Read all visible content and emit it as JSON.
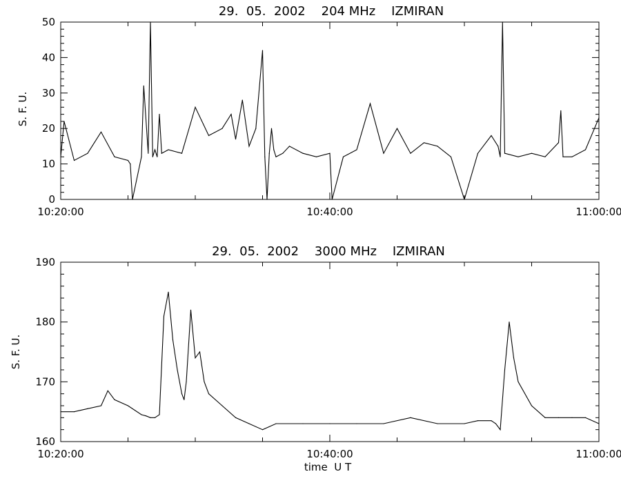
{
  "chart_data": [
    {
      "type": "line",
      "title": "29.  05.  2002    204 MHz    IZMIRAN",
      "ylabel": "S. F. U.",
      "xlabel": "",
      "xlim": [
        "10:20:00",
        "11:00:00"
      ],
      "x_ticks": [
        "10:20:00",
        "10:40:00",
        "11:00:00"
      ],
      "ylim": [
        0,
        50
      ],
      "y_ticks": [
        "0",
        "10",
        "20",
        "30",
        "40",
        "50"
      ],
      "grid": false,
      "series": [
        {
          "x": [
            "10:20:00",
            "10:20:15",
            "10:21:00",
            "10:22:00",
            "10:23:00",
            "10:24:00",
            "10:25:00",
            "10:25:10",
            "10:25:20",
            "10:26:00",
            "10:26:10",
            "10:26:30",
            "10:26:40",
            "10:26:50",
            "10:27:00",
            "10:27:10",
            "10:27:20",
            "10:27:30",
            "10:28:00",
            "10:29:00",
            "10:30:00",
            "10:31:00",
            "10:32:00",
            "10:32:40",
            "10:33:00",
            "10:33:30",
            "10:34:00",
            "10:34:30",
            "10:35:00",
            "10:35:10",
            "10:35:20",
            "10:35:30",
            "10:35:40",
            "10:35:50",
            "10:36:00",
            "10:36:30",
            "10:37:00",
            "10:38:00",
            "10:39:00",
            "10:40:00",
            "10:40:10",
            "10:41:00",
            "10:42:00",
            "10:43:00",
            "10:44:00",
            "10:45:00",
            "10:46:00",
            "10:47:00",
            "10:48:00",
            "10:49:00",
            "10:50:00",
            "10:51:00",
            "10:52:00",
            "10:52:30",
            "10:52:40",
            "10:52:50",
            "10:53:00",
            "10:54:00",
            "10:55:00",
            "10:56:00",
            "10:57:00",
            "10:57:10",
            "10:57:20",
            "10:58:00",
            "10:59:00",
            "11:00:00"
          ],
          "values": [
            12,
            22,
            11,
            13,
            19,
            12,
            11,
            10,
            0,
            12,
            32,
            13,
            55,
            12,
            14,
            12,
            24,
            13,
            14,
            13,
            26,
            18,
            20,
            24,
            17,
            28,
            15,
            20,
            42,
            12,
            0,
            13,
            20,
            14,
            12,
            13,
            15,
            13,
            12,
            13,
            0,
            12,
            14,
            27,
            13,
            20,
            13,
            16,
            15,
            12,
            0,
            13,
            18,
            15,
            12,
            55,
            13,
            12,
            13,
            12,
            16,
            25,
            12,
            12,
            14,
            23
          ]
        }
      ]
    },
    {
      "type": "line",
      "title": "29.  05.  2002    3000 MHz    IZMIRAN",
      "ylabel": "S. F. U.",
      "xlabel": "time  U T",
      "xlim": [
        "10:20:00",
        "11:00:00"
      ],
      "x_ticks": [
        "10:20:00",
        "10:40:00",
        "11:00:00"
      ],
      "ylim": [
        160,
        190
      ],
      "y_ticks": [
        "160",
        "170",
        "180",
        "190"
      ],
      "grid": false,
      "series": [
        {
          "x": [
            "10:20:00",
            "10:21:00",
            "10:22:00",
            "10:23:00",
            "10:23:30",
            "10:24:00",
            "10:25:00",
            "10:26:00",
            "10:26:20",
            "10:26:40",
            "10:27:00",
            "10:27:20",
            "10:27:40",
            "10:28:00",
            "10:28:20",
            "10:28:40",
            "10:29:00",
            "10:29:10",
            "10:29:20",
            "10:29:40",
            "10:30:00",
            "10:30:20",
            "10:30:40",
            "10:31:00",
            "10:32:00",
            "10:33:00",
            "10:34:00",
            "10:35:00",
            "10:36:00",
            "10:38:00",
            "10:40:00",
            "10:42:00",
            "10:44:00",
            "10:46:00",
            "10:48:00",
            "10:50:00",
            "10:51:00",
            "10:52:00",
            "10:52:20",
            "10:52:40",
            "10:53:00",
            "10:53:20",
            "10:53:40",
            "10:54:00",
            "10:55:00",
            "10:56:00",
            "10:57:00",
            "10:58:00",
            "10:59:00",
            "11:00:00"
          ],
          "values": [
            165,
            165,
            165.5,
            166,
            168.5,
            167,
            166,
            164.5,
            164.3,
            164,
            164,
            164.5,
            181,
            185,
            177,
            172,
            168,
            167,
            170,
            182,
            174,
            175,
            170,
            168,
            166,
            164,
            163,
            162,
            163,
            163,
            163,
            163,
            163,
            164,
            163,
            163,
            163.5,
            163.5,
            163,
            162,
            172,
            180,
            174,
            170,
            166,
            164,
            164,
            164,
            164,
            163
          ]
        }
      ]
    }
  ]
}
